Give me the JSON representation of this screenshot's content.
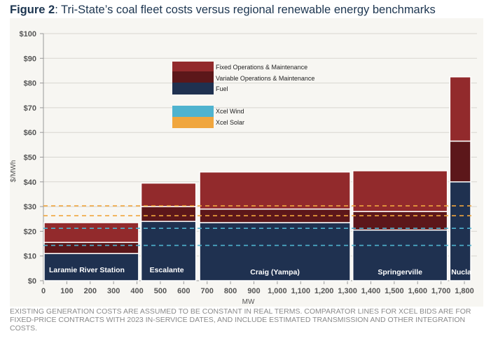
{
  "title": {
    "label": "Figure 2",
    "text": ": Tri-State’s coal fleet costs versus regional renewable energy benchmarks"
  },
  "footnote": "EXISTING GENERATION COSTS ARE ASSUMED TO BE CONSTANT IN REAL TERMS. COMPARATOR LINES FOR XCEL BIDS ARE FOR FIXED-PRICE CONTRACTS WITH 2023 IN-SERVICE DATES, AND INCLUDE ESTIMATED TRANSMISSION AND OTHER INTEGRATION COSTS.",
  "chart_data": {
    "type": "bar",
    "subtype": "variable-width stacked bar (marimekko)",
    "xlabel": "MW",
    "ylabel": "$/MWh",
    "xlim": [
      0,
      1830
    ],
    "ylim": [
      0,
      100
    ],
    "xticks": [
      0,
      100,
      200,
      300,
      400,
      500,
      600,
      700,
      800,
      900,
      1000,
      1100,
      1200,
      1300,
      1400,
      1500,
      1600,
      1700,
      1800
    ],
    "xtick_labels": [
      "0",
      "100",
      "200",
      "300",
      "400",
      "500",
      "600",
      "700",
      "800",
      "900",
      "1,000",
      "1,100",
      "1,200",
      "1,300",
      "1,400",
      "1,500",
      "1,600",
      "1,700",
      "1,800"
    ],
    "yticks": [
      0,
      10,
      20,
      30,
      40,
      50,
      60,
      70,
      80,
      90,
      100
    ],
    "ytick_labels": [
      "$0",
      "$10",
      "$20",
      "$30",
      "$40",
      "$50",
      "$60",
      "$70",
      "$80",
      "$90",
      "$100"
    ],
    "grid": "horizontal",
    "legend_placement": "top-center",
    "plants": [
      {
        "name": "Laramie River Station",
        "mw_start": 0,
        "mw_end": 410,
        "fuel": 11,
        "variable_om": 4.5,
        "fixed_om": 8
      },
      {
        "name": "Escalante",
        "mw_start": 415,
        "mw_end": 655,
        "fuel": 24,
        "variable_om": 6,
        "fixed_om": 9.5
      },
      {
        "name": "Craig (Yampa)",
        "mw_start": 665,
        "mw_end": 1315,
        "fuel": 23.5,
        "variable_om": 5.5,
        "fixed_om": 15
      },
      {
        "name": "Springerville",
        "mw_start": 1320,
        "mw_end": 1730,
        "fuel": 20.5,
        "variable_om": 7.5,
        "fixed_om": 16.5
      },
      {
        "name": "Nucla",
        "mw_start": 1735,
        "mw_end": 1830,
        "fuel": 40,
        "variable_om": 16.5,
        "fixed_om": 26
      }
    ],
    "series": [
      {
        "name": "Fixed Operations & Maintenance",
        "key": "fixed_om",
        "color": "#922a2c"
      },
      {
        "name": "Variable Operations & Maintenance",
        "key": "variable_om",
        "color": "#5c171a"
      },
      {
        "name": "Fuel",
        "key": "fuel",
        "color": "#1f3150"
      }
    ],
    "benchmarks": [
      {
        "name": "Xcel Wind",
        "color": "#4fb3cf",
        "values": [
          21.2,
          14.3
        ]
      },
      {
        "name": "Xcel Solar",
        "color": "#f0a63e",
        "values": [
          30.3,
          26.3
        ]
      }
    ]
  }
}
